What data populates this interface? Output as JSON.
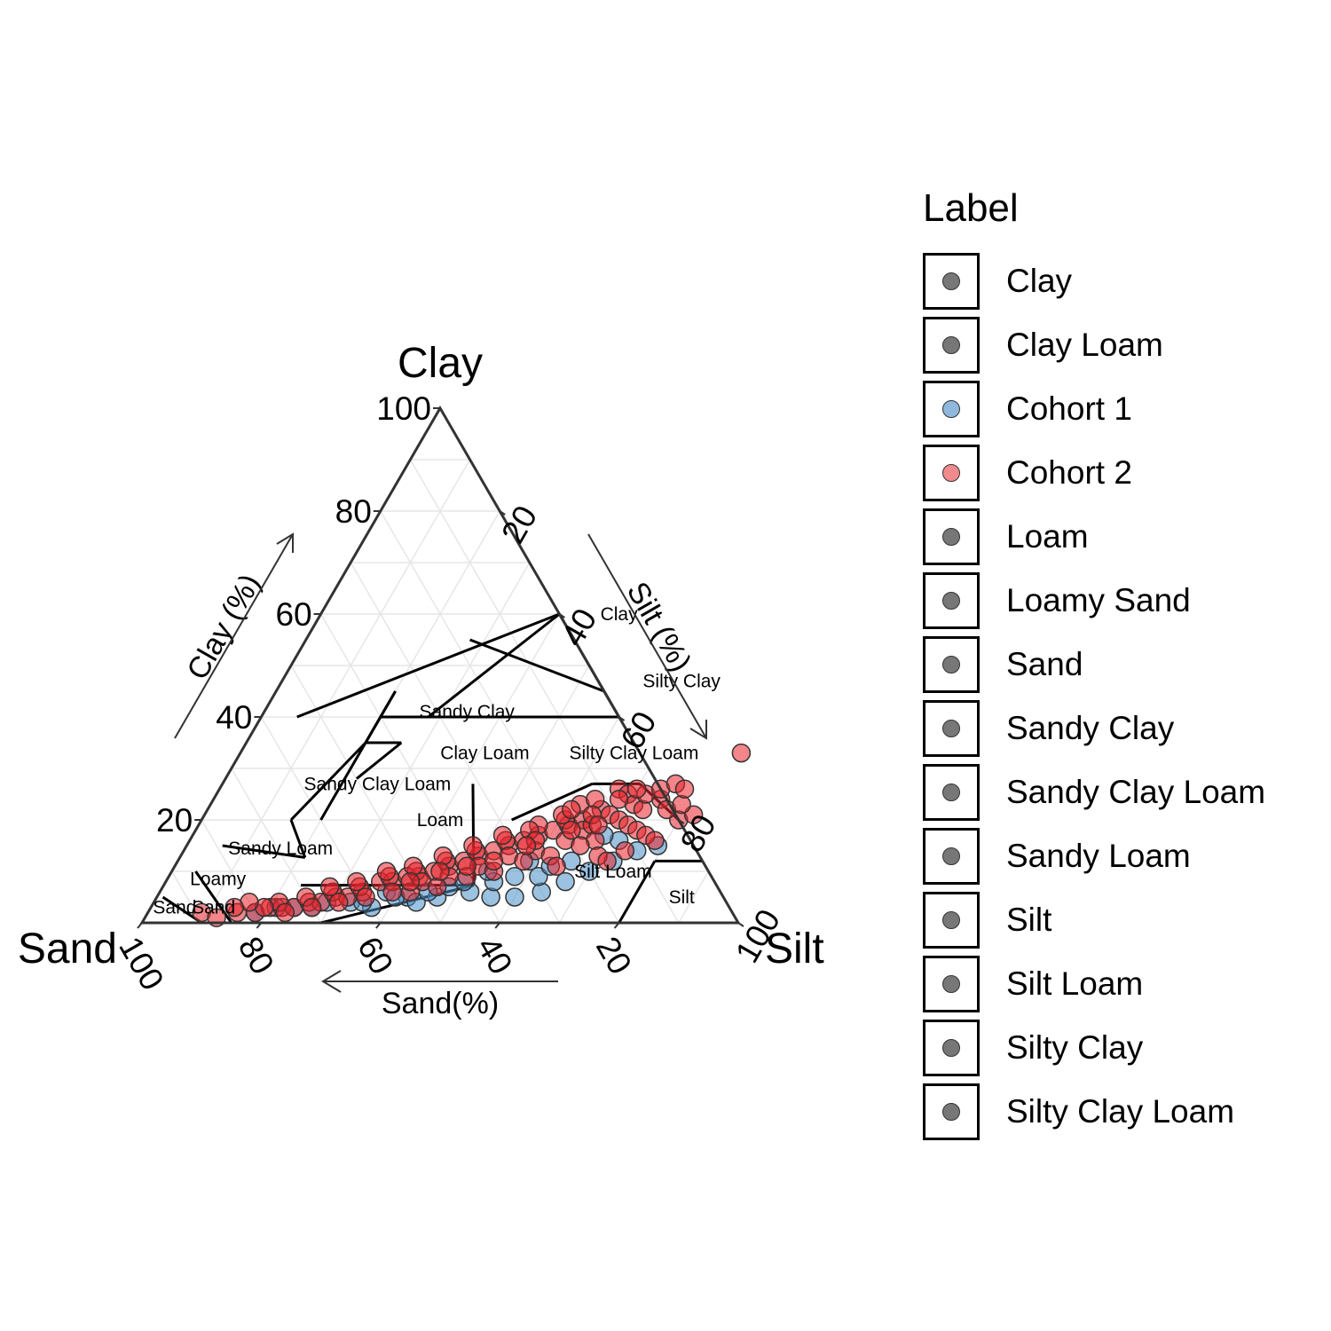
{
  "chart_data": {
    "type": "ternary-scatter",
    "title": "",
    "axes": {
      "top": {
        "name": "Clay",
        "label": "Clay (%)"
      },
      "right": {
        "name": "Silt",
        "label": "Silt (%)"
      },
      "left": {
        "name": "Sand",
        "label": "Sand(%)"
      },
      "ticks": [
        20,
        40,
        60,
        80,
        100
      ],
      "clay_ticks": [
        "20",
        "40",
        "60",
        "80",
        "100"
      ],
      "silt_ticks": [
        "20",
        "40",
        "60",
        "80",
        "100"
      ],
      "sand_ticks": [
        "100",
        "80",
        "60",
        "40",
        "20"
      ]
    },
    "grid": true,
    "colors": {
      "Cohort 1": "#4a90c8",
      "Cohort 2": "#e8222a",
      "class": "#777777"
    },
    "regions": [
      {
        "name": "Clay",
        "label": "Clay",
        "label_pos": [
          50,
          60
        ]
      },
      {
        "name": "Silty Clay",
        "label": "Silty Clay",
        "label_pos": [
          67,
          47
        ]
      },
      {
        "name": "Sandy Clay",
        "label": "Sandy Clay",
        "label_pos": [
          34,
          41
        ]
      },
      {
        "name": "Clay Loam",
        "label": "Clay Loam",
        "label_pos": [
          41,
          33
        ]
      },
      {
        "name": "Silty Clay Loam",
        "label": "Silty Clay Loam",
        "label_pos": [
          66,
          33
        ]
      },
      {
        "name": "Sandy Clay Loam",
        "label": "Sandy Clay Loam",
        "label_pos": [
          26,
          27
        ]
      },
      {
        "name": "Loam",
        "label": "Loam",
        "label_pos": [
          40,
          20
        ]
      },
      {
        "name": "Sandy Loam",
        "label": "Sandy Loam",
        "label_pos": [
          16,
          14.5
        ]
      },
      {
        "name": "Silt Loam",
        "label": "Silt Loam",
        "label_pos": [
          74,
          10
        ]
      },
      {
        "name": "Silt",
        "label": "Silt",
        "label_pos": [
          88,
          5
        ]
      },
      {
        "name": "Loamy Sand",
        "label": "Loamy",
        "label_pos": [
          8.5,
          8.5
        ]
      },
      {
        "name": "Sand",
        "label": "Sand",
        "label_pos": [
          4,
          3
        ]
      },
      {
        "name": "Sand 2",
        "label": "Sand",
        "label_pos": [
          10.5,
          3
        ]
      }
    ],
    "boundaries": [
      [
        [
          55,
          45
        ],
        [
          27.5,
          55
        ]
      ],
      [
        [
          6,
          40
        ],
        [
          40,
          60
        ]
      ],
      [
        [
          20,
          40
        ],
        [
          60,
          40
        ]
      ],
      [
        [
          60,
          40
        ],
        [
          40,
          60
        ]
      ],
      [
        [
          26,
          35
        ],
        [
          20,
          35
        ]
      ],
      [
        [
          26,
          35
        ],
        [
          22,
          28
        ]
      ],
      [
        [
          20,
          45
        ],
        [
          20,
          35
        ]
      ],
      [
        [
          20,
          45
        ],
        [
          20,
          20
        ]
      ],
      [
        [
          20,
          35
        ],
        [
          15,
          20
        ]
      ],
      [
        [
          15,
          20
        ],
        [
          21,
          12.7
        ]
      ],
      [
        [
          52,
          7.3
        ],
        [
          42,
          27
        ]
      ],
      [
        [
          70,
          27
        ],
        [
          62,
          27
        ]
      ],
      [
        [
          70,
          27
        ],
        [
          80,
          20
        ]
      ],
      [
        [
          28,
          40
        ],
        [
          40,
          60
        ]
      ],
      [
        [
          52,
          20
        ],
        [
          62,
          27
        ]
      ],
      [
        [
          80,
          12
        ],
        [
          80,
          0
        ]
      ],
      [
        [
          80,
          12
        ],
        [
          88,
          12
        ]
      ],
      [
        [
          6,
          15
        ],
        [
          21,
          12.7
        ]
      ],
      [
        [
          4,
          10
        ],
        [
          15,
          0
        ]
      ],
      [
        [
          1,
          5
        ],
        [
          10,
          0
        ]
      ],
      [
        [
          23,
          7.3
        ],
        [
          52,
          7.3
        ]
      ],
      [
        [
          30,
          0
        ],
        [
          52,
          7.3
        ]
      ]
    ],
    "series": [
      {
        "name": "Cohort 1",
        "points": [
          [
            18,
            2
          ],
          [
            21,
            3
          ],
          [
            27,
            3
          ],
          [
            33,
            4
          ],
          [
            37,
            3
          ],
          [
            42,
            5
          ],
          [
            47,
            5
          ],
          [
            52,
            6
          ],
          [
            56,
            5
          ],
          [
            60,
            5
          ],
          [
            64,
            6
          ],
          [
            67,
            8
          ],
          [
            70,
            10
          ],
          [
            73,
            12
          ],
          [
            76,
            14
          ],
          [
            58,
            9
          ],
          [
            62,
            9
          ],
          [
            48,
            7
          ],
          [
            44,
            4
          ],
          [
            38,
            6
          ],
          [
            55,
            8
          ],
          [
            66,
            12
          ],
          [
            72,
            16
          ],
          [
            69,
            17
          ],
          [
            79,
            15
          ],
          [
            45,
            6
          ],
          [
            35,
            4
          ],
          [
            29,
            4
          ],
          [
            63,
            11
          ],
          [
            24,
            3
          ],
          [
            40,
            5
          ],
          [
            53,
            10
          ],
          [
            59,
            12
          ],
          [
            50,
            8
          ]
        ]
      },
      {
        "name": "Cohort 2",
        "points": [
          [
            9,
            2
          ],
          [
            12,
            1
          ],
          [
            15,
            2
          ],
          [
            18,
            2
          ],
          [
            20,
            3
          ],
          [
            22,
            3
          ],
          [
            24,
            3
          ],
          [
            26,
            4
          ],
          [
            28,
            4
          ],
          [
            30,
            5
          ],
          [
            32,
            5
          ],
          [
            34,
            6
          ],
          [
            36,
            8
          ],
          [
            38,
            8
          ],
          [
            40,
            9
          ],
          [
            42,
            9
          ],
          [
            44,
            10
          ],
          [
            46,
            11
          ],
          [
            48,
            12
          ],
          [
            50,
            13
          ],
          [
            52,
            14
          ],
          [
            54,
            15
          ],
          [
            56,
            16
          ],
          [
            58,
            17
          ],
          [
            60,
            18
          ],
          [
            62,
            19
          ],
          [
            64,
            20
          ],
          [
            66,
            22
          ],
          [
            68,
            21
          ],
          [
            70,
            20
          ],
          [
            72,
            19
          ],
          [
            74,
            18
          ],
          [
            76,
            17
          ],
          [
            78,
            16
          ],
          [
            80,
            20
          ],
          [
            82,
            21
          ],
          [
            84,
            33
          ],
          [
            67,
            26
          ],
          [
            69,
            25
          ],
          [
            61,
            20
          ],
          [
            57,
            19
          ],
          [
            53,
            16
          ],
          [
            49,
            14
          ],
          [
            45,
            12
          ],
          [
            41,
            10
          ],
          [
            37,
            9
          ],
          [
            33,
            7
          ],
          [
            29,
            6
          ],
          [
            25,
            5
          ],
          [
            21,
            4
          ],
          [
            59,
            14
          ],
          [
            63,
            16
          ],
          [
            65,
            18
          ],
          [
            71,
            23
          ],
          [
            73,
            22
          ],
          [
            75,
            24
          ],
          [
            77,
            22
          ],
          [
            79,
            23
          ],
          [
            55,
            13
          ],
          [
            51,
            11
          ],
          [
            47,
            9
          ],
          [
            43,
            8
          ],
          [
            39,
            6
          ],
          [
            35,
            5
          ],
          [
            31,
            4
          ],
          [
            27,
            3
          ],
          [
            23,
            2
          ],
          [
            19,
            3
          ],
          [
            16,
            4
          ],
          [
            14,
            3
          ],
          [
            62,
            23
          ],
          [
            64,
            24
          ],
          [
            66,
            19
          ],
          [
            68,
            16
          ],
          [
            70,
            13
          ],
          [
            58,
            12
          ],
          [
            54,
            10
          ],
          [
            50,
            9
          ],
          [
            46,
            7
          ],
          [
            42,
            6
          ],
          [
            60,
            21
          ],
          [
            56,
            18
          ],
          [
            52,
            17
          ],
          [
            48,
            15
          ],
          [
            44,
            13
          ],
          [
            40,
            11
          ],
          [
            36,
            10
          ],
          [
            32,
            8
          ],
          [
            28,
            7
          ],
          [
            72,
            25
          ],
          [
            74,
            26
          ],
          [
            76,
            27
          ],
          [
            78,
            26
          ],
          [
            74,
            14
          ],
          [
            72,
            12
          ],
          [
            66,
            15
          ],
          [
            62,
            13
          ],
          [
            64,
            11
          ],
          [
            58,
            16
          ],
          [
            68,
            24
          ],
          [
            70,
            26
          ],
          [
            61,
            22
          ],
          [
            63,
            18
          ],
          [
            65,
            21
          ],
          [
            67,
            19
          ],
          [
            57,
            15
          ],
          [
            53,
            12
          ],
          [
            49,
            11
          ],
          [
            45,
            10
          ],
          [
            41,
            8
          ]
        ]
      }
    ]
  },
  "legend": {
    "title": "Label",
    "items": [
      {
        "label": "Clay",
        "color": "#777777"
      },
      {
        "label": "Clay Loam",
        "color": "#777777"
      },
      {
        "label": "Cohort 1",
        "color": "#8fb8dc"
      },
      {
        "label": "Cohort 2",
        "color": "#f08a8d"
      },
      {
        "label": "Loam",
        "color": "#777777"
      },
      {
        "label": "Loamy Sand",
        "color": "#777777"
      },
      {
        "label": "Sand",
        "color": "#777777"
      },
      {
        "label": "Sandy Clay",
        "color": "#777777"
      },
      {
        "label": "Sandy Clay Loam",
        "color": "#777777"
      },
      {
        "label": "Sandy Loam",
        "color": "#777777"
      },
      {
        "label": "Silt",
        "color": "#777777"
      },
      {
        "label": "Silt Loam",
        "color": "#777777"
      },
      {
        "label": "Silty Clay",
        "color": "#777777"
      },
      {
        "label": "Silty Clay Loam",
        "color": "#777777"
      }
    ]
  }
}
